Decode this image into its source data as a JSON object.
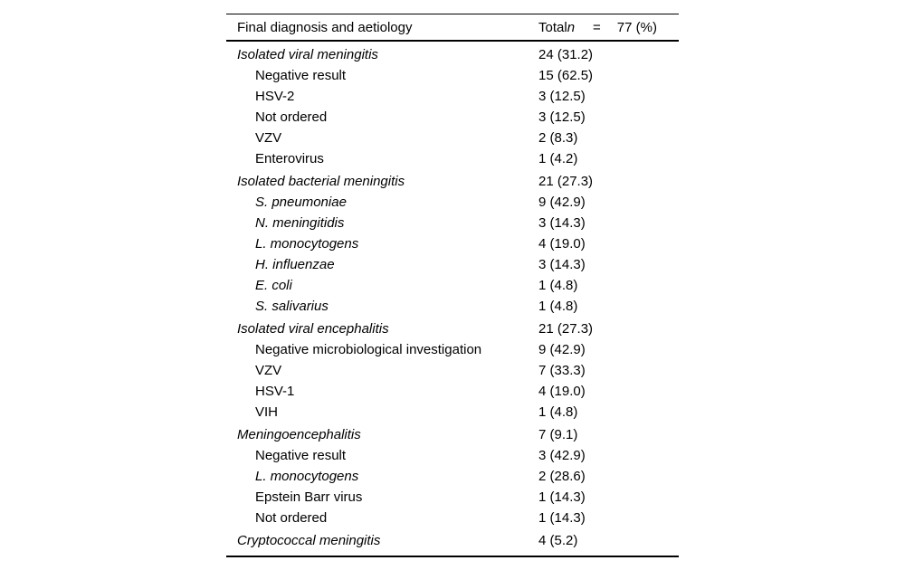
{
  "colors": {
    "text": "#000000",
    "background": "#ffffff",
    "rule": "#000000"
  },
  "table": {
    "header": {
      "diagnosis_label": "Final diagnosis and aetiology",
      "total_prefix": "Total",
      "total_n_symbol": "n",
      "total_equals": "=",
      "total_value": "77 (%)"
    },
    "rows": [
      {
        "label": "Isolated viral meningitis",
        "value": "24 (31.2)",
        "level": 0,
        "italic": true
      },
      {
        "label": "Negative result",
        "value": "15 (62.5)",
        "level": 1,
        "italic": false
      },
      {
        "label": "HSV-2",
        "value": "3 (12.5)",
        "level": 1,
        "italic": false
      },
      {
        "label": "Not ordered",
        "value": "3 (12.5)",
        "level": 1,
        "italic": false
      },
      {
        "label": "VZV",
        "value": "2 (8.3)",
        "level": 1,
        "italic": false
      },
      {
        "label": "Enterovirus",
        "value": "1 (4.2)",
        "level": 1,
        "italic": false
      },
      {
        "label": "Isolated bacterial meningitis",
        "value": "21 (27.3)",
        "level": 0,
        "italic": true
      },
      {
        "label": "S. pneumoniae",
        "value": "9 (42.9)",
        "level": 1,
        "italic": true
      },
      {
        "label": "N. meningitidis",
        "value": "3 (14.3)",
        "level": 1,
        "italic": true
      },
      {
        "label": "L. monocytogens",
        "value": "4 (19.0)",
        "level": 1,
        "italic": true
      },
      {
        "label": "H. influenzae",
        "value": "3 (14.3)",
        "level": 1,
        "italic": true
      },
      {
        "label": "E. coli",
        "value": "1 (4.8)",
        "level": 1,
        "italic": true
      },
      {
        "label": "S. salivarius",
        "value": "1 (4.8)",
        "level": 1,
        "italic": true
      },
      {
        "label": "Isolated viral encephalitis",
        "value": "21 (27.3)",
        "level": 0,
        "italic": true
      },
      {
        "label": "Negative microbiological investigation",
        "value": "9 (42.9)",
        "level": 1,
        "italic": false
      },
      {
        "label": "VZV",
        "value": "7 (33.3)",
        "level": 1,
        "italic": false
      },
      {
        "label": "HSV-1",
        "value": "4 (19.0)",
        "level": 1,
        "italic": false
      },
      {
        "label": "VIH",
        "value": "1 (4.8)",
        "level": 1,
        "italic": false
      },
      {
        "label": "Meningoencephalitis",
        "value": "7 (9.1)",
        "level": 0,
        "italic": true
      },
      {
        "label": "Negative result",
        "value": "3 (42.9)",
        "level": 1,
        "italic": false
      },
      {
        "label": "L. monocytogens",
        "value": "2 (28.6)",
        "level": 1,
        "italic": true
      },
      {
        "label": "Epstein Barr virus",
        "value": "1 (14.3)",
        "level": 1,
        "italic": false
      },
      {
        "label": "Not ordered",
        "value": "1 (14.3)",
        "level": 1,
        "italic": false
      },
      {
        "label": "Cryptococcal meningitis",
        "value": "4 (5.2)",
        "level": 0,
        "italic": true
      }
    ]
  }
}
